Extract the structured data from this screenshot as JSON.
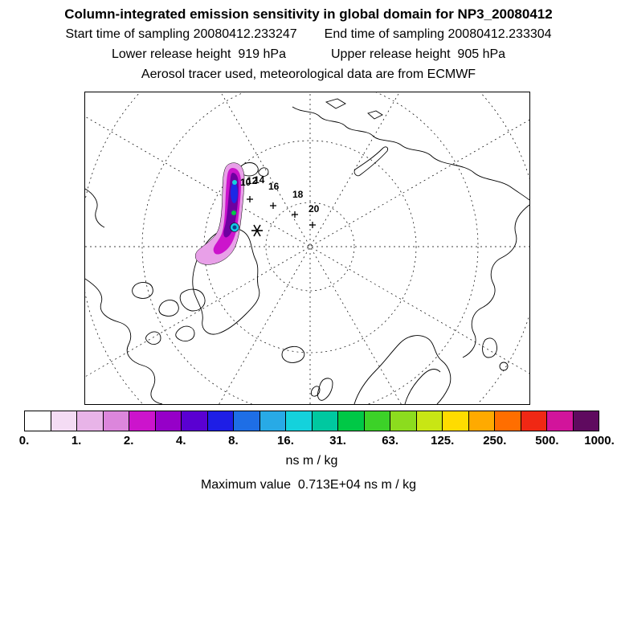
{
  "header": {
    "title": "Column-integrated emission sensitivity in global domain for NP3_20080412",
    "start_time": "Start time of sampling 20080412.233247",
    "end_time": "End time of sampling 20080412.233304",
    "lower_release": "Lower release height  919 hPa",
    "upper_release": "Upper release height  905 hPa",
    "tracer_info": "Aerosol tracer used, meteorological data are from ECMWF"
  },
  "map": {
    "trajectory_labels": [
      "10",
      "12",
      "14",
      "16",
      "18",
      "20"
    ]
  },
  "colorbar": {
    "colors": [
      "#FFFFFF",
      "#F4DCF4",
      "#E8B4E8",
      "#DC86DC",
      "#CC14CC",
      "#9600C8",
      "#5A00D2",
      "#1E1EE6",
      "#1E6EE6",
      "#28AAE6",
      "#14D2DC",
      "#00C8A0",
      "#00C846",
      "#3CD228",
      "#8CDC1E",
      "#C8E614",
      "#FFDC00",
      "#FFAA00",
      "#FF6E00",
      "#F02814",
      "#D2149B",
      "#5F0A5F"
    ],
    "tick_labels": [
      "0.",
      "1.",
      "2.",
      "4.",
      "8.",
      "16.",
      "31.",
      "63.",
      "125.",
      "250.",
      "500.",
      "1000."
    ],
    "units_label": "ns m / kg"
  },
  "footer": {
    "max_value_line": "Maximum value  0.713E+04 ns m / kg"
  },
  "chart_data": {
    "type": "heatmap",
    "title": "Column-integrated emission sensitivity in global domain for NP3_20080412",
    "projection": "north polar stereographic map",
    "station": "NP3_20080412",
    "sampling_start": "20080412.233247",
    "sampling_end": "20080412.233304",
    "lower_release_height_hPa": 919,
    "upper_release_height_hPa": 905,
    "tracer": "Aerosol",
    "meteo_source": "ECMWF",
    "units": "ns m / kg",
    "maximum_value": "0.713E+04",
    "colorbar_levels": [
      0,
      1,
      2,
      4,
      8,
      16,
      31,
      63,
      125,
      250,
      500,
      1000
    ],
    "colorbar_colors": [
      "#FFFFFF",
      "#F4DCF4",
      "#E8B4E8",
      "#DC86DC",
      "#CC14CC",
      "#9600C8",
      "#5A00D2",
      "#1E1EE6",
      "#1E6EE6",
      "#28AAE6",
      "#14D2DC",
      "#00C8A0",
      "#00C846",
      "#3CD228",
      "#8CDC1E",
      "#C8E614",
      "#FFDC00",
      "#FFAA00",
      "#FF6E00",
      "#F02814",
      "#D2149B",
      "#5F0A5F"
    ],
    "trajectory_hour_labels": [
      10,
      12,
      14,
      16,
      18,
      20
    ],
    "legend_position": "bottom"
  }
}
